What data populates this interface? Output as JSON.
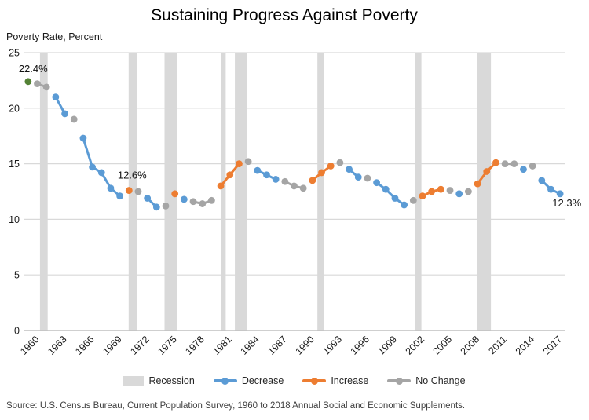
{
  "title": "Sustaining Progress Against Poverty",
  "y_axis_caption": "Poverty Rate, Percent",
  "source": "Source: U.S. Census Bureau, Current Population Survey, 1960 to 2018 Annual Social and Economic Supplements.",
  "legend": {
    "items": [
      {
        "label": "Recession",
        "type": "band",
        "color": "#D9D9D9"
      },
      {
        "label": "Decrease",
        "type": "line",
        "color": "#5B9BD5"
      },
      {
        "label": "Increase",
        "type": "line",
        "color": "#ED7D31"
      },
      {
        "label": "No Change",
        "type": "line",
        "color": "#A5A5A5"
      }
    ]
  },
  "colors": {
    "start": "#548235",
    "decrease": "#5B9BD5",
    "increase": "#ED7D31",
    "nochange": "#A5A5A5",
    "recession_band": "#D9D9D9",
    "gridline": "#D9D9D9",
    "axis_line": "#BFBFBF"
  },
  "chart_data": {
    "type": "line",
    "title": "Sustaining Progress Against Poverty",
    "ylabel": "Poverty Rate, Percent",
    "ylim": [
      0,
      25
    ],
    "yticks": [
      0,
      5,
      10,
      15,
      20,
      25
    ],
    "xticks": [
      1960,
      1963,
      1966,
      1969,
      1972,
      1975,
      1978,
      1981,
      1984,
      1987,
      1990,
      1993,
      1996,
      1999,
      2002,
      2005,
      2008,
      2011,
      2014,
      2017
    ],
    "grid": "horizontal",
    "legend_position": "bottom",
    "points": [
      {
        "year": 1959,
        "value": 22.4,
        "status": "start"
      },
      {
        "year": 1960,
        "value": 22.2,
        "status": "nochange"
      },
      {
        "year": 1961,
        "value": 21.9,
        "status": "nochange"
      },
      {
        "year": 1962,
        "value": 21.0,
        "status": "decrease"
      },
      {
        "year": 1963,
        "value": 19.5,
        "status": "decrease"
      },
      {
        "year": 1964,
        "value": 19.0,
        "status": "nochange"
      },
      {
        "year": 1965,
        "value": 17.3,
        "status": "decrease"
      },
      {
        "year": 1966,
        "value": 14.7,
        "status": "decrease"
      },
      {
        "year": 1967,
        "value": 14.2,
        "status": "decrease"
      },
      {
        "year": 1968,
        "value": 12.8,
        "status": "decrease"
      },
      {
        "year": 1969,
        "value": 12.1,
        "status": "decrease"
      },
      {
        "year": 1970,
        "value": 12.6,
        "status": "increase"
      },
      {
        "year": 1971,
        "value": 12.5,
        "status": "nochange"
      },
      {
        "year": 1972,
        "value": 11.9,
        "status": "decrease"
      },
      {
        "year": 1973,
        "value": 11.1,
        "status": "decrease"
      },
      {
        "year": 1974,
        "value": 11.2,
        "status": "nochange"
      },
      {
        "year": 1975,
        "value": 12.3,
        "status": "increase"
      },
      {
        "year": 1976,
        "value": 11.8,
        "status": "decrease"
      },
      {
        "year": 1977,
        "value": 11.6,
        "status": "nochange"
      },
      {
        "year": 1978,
        "value": 11.4,
        "status": "nochange"
      },
      {
        "year": 1979,
        "value": 11.7,
        "status": "nochange"
      },
      {
        "year": 1980,
        "value": 13.0,
        "status": "increase"
      },
      {
        "year": 1981,
        "value": 14.0,
        "status": "increase"
      },
      {
        "year": 1982,
        "value": 15.0,
        "status": "increase"
      },
      {
        "year": 1983,
        "value": 15.2,
        "status": "nochange"
      },
      {
        "year": 1984,
        "value": 14.4,
        "status": "decrease"
      },
      {
        "year": 1985,
        "value": 14.0,
        "status": "decrease"
      },
      {
        "year": 1986,
        "value": 13.6,
        "status": "decrease"
      },
      {
        "year": 1987,
        "value": 13.4,
        "status": "nochange"
      },
      {
        "year": 1988,
        "value": 13.0,
        "status": "nochange"
      },
      {
        "year": 1989,
        "value": 12.8,
        "status": "nochange"
      },
      {
        "year": 1990,
        "value": 13.5,
        "status": "increase"
      },
      {
        "year": 1991,
        "value": 14.2,
        "status": "increase"
      },
      {
        "year": 1992,
        "value": 14.8,
        "status": "increase"
      },
      {
        "year": 1993,
        "value": 15.1,
        "status": "nochange"
      },
      {
        "year": 1994,
        "value": 14.5,
        "status": "decrease"
      },
      {
        "year": 1995,
        "value": 13.8,
        "status": "decrease"
      },
      {
        "year": 1996,
        "value": 13.7,
        "status": "nochange"
      },
      {
        "year": 1997,
        "value": 13.3,
        "status": "decrease"
      },
      {
        "year": 1998,
        "value": 12.7,
        "status": "decrease"
      },
      {
        "year": 1999,
        "value": 11.9,
        "status": "decrease"
      },
      {
        "year": 2000,
        "value": 11.3,
        "status": "decrease"
      },
      {
        "year": 2001,
        "value": 11.7,
        "status": "nochange"
      },
      {
        "year": 2002,
        "value": 12.1,
        "status": "increase"
      },
      {
        "year": 2003,
        "value": 12.5,
        "status": "increase"
      },
      {
        "year": 2004,
        "value": 12.7,
        "status": "increase"
      },
      {
        "year": 2005,
        "value": 12.6,
        "status": "nochange"
      },
      {
        "year": 2006,
        "value": 12.3,
        "status": "decrease"
      },
      {
        "year": 2007,
        "value": 12.5,
        "status": "nochange"
      },
      {
        "year": 2008,
        "value": 13.2,
        "status": "increase"
      },
      {
        "year": 2009,
        "value": 14.3,
        "status": "increase"
      },
      {
        "year": 2010,
        "value": 15.1,
        "status": "increase"
      },
      {
        "year": 2011,
        "value": 15.0,
        "status": "nochange"
      },
      {
        "year": 2012,
        "value": 15.0,
        "status": "nochange"
      },
      {
        "year": 2013,
        "value": 14.5,
        "status": "decrease"
      },
      {
        "year": 2014,
        "value": 14.8,
        "status": "nochange"
      },
      {
        "year": 2015,
        "value": 13.5,
        "status": "decrease"
      },
      {
        "year": 2016,
        "value": 12.7,
        "status": "decrease"
      },
      {
        "year": 2017,
        "value": 12.3,
        "status": "decrease"
      }
    ],
    "recessions": [
      {
        "start": 1960.29,
        "end": 1961.13
      },
      {
        "start": 1969.96,
        "end": 1970.88
      },
      {
        "start": 1973.87,
        "end": 1975.21
      },
      {
        "start": 1980.04,
        "end": 1980.54
      },
      {
        "start": 1981.54,
        "end": 1982.88
      },
      {
        "start": 1990.54,
        "end": 1991.21
      },
      {
        "start": 2001.21,
        "end": 2001.88
      },
      {
        "start": 2007.96,
        "end": 2009.46
      }
    ],
    "annotations": [
      {
        "year": 1959,
        "text": "22.4%",
        "position": "above-left"
      },
      {
        "year": 1970,
        "text": "12.6%",
        "position": "above"
      },
      {
        "year": 2017,
        "text": "12.3%",
        "position": "below-right"
      }
    ]
  }
}
